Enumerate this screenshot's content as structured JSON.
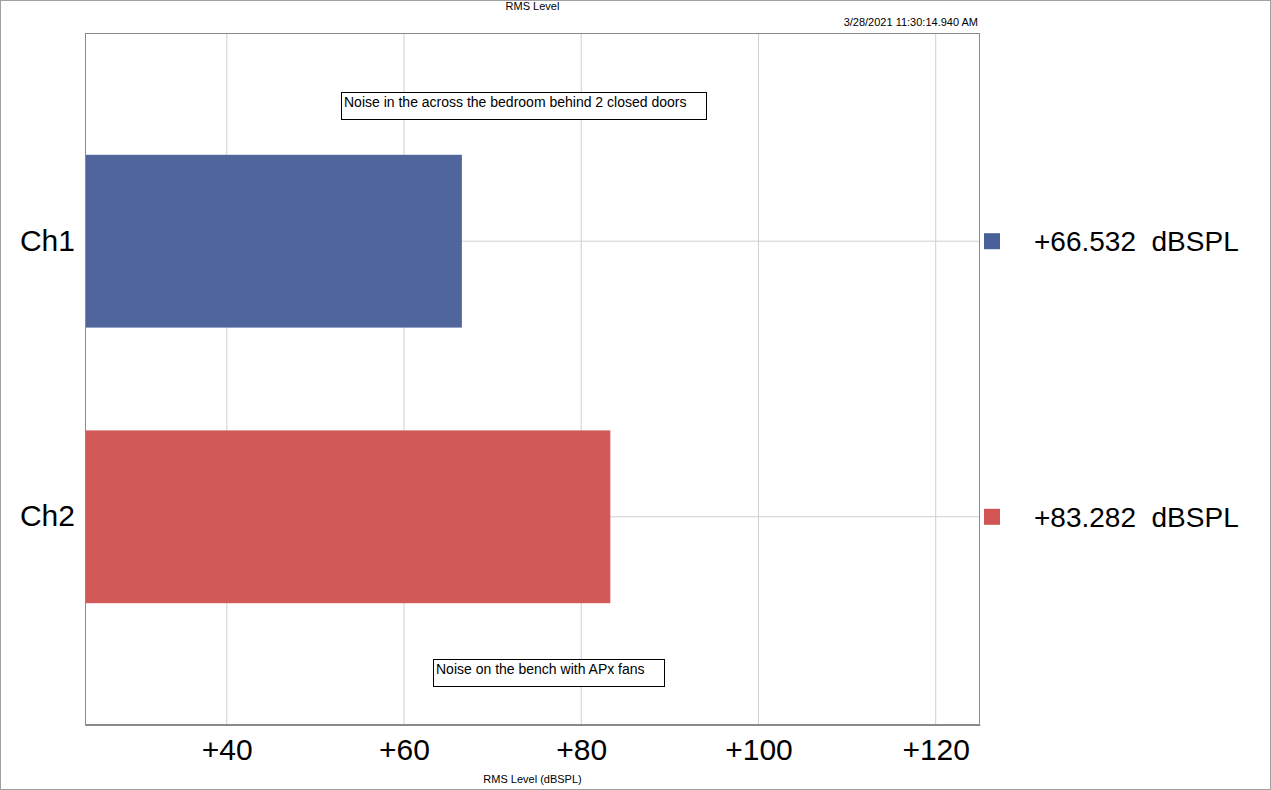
{
  "chart_data": {
    "type": "bar",
    "orientation": "horizontal",
    "title": "RMS Level",
    "subtitle": "3/28/2021 11:30:14.940 AM",
    "x_label": "RMS Level (dBSPL)",
    "categories": [
      "Ch1",
      "Ch2"
    ],
    "values": [
      66.532,
      83.282
    ],
    "value_labels": [
      "+66.532  dBSPL",
      "+83.282  dBSPL"
    ],
    "data_labels": true,
    "colors": [
      "#4a6099",
      "#d05553"
    ],
    "xlim": [
      24,
      125
    ],
    "xticks": [
      {
        "value": 40,
        "label": "+40"
      },
      {
        "value": 60,
        "label": "+60"
      },
      {
        "value": 80,
        "label": "+80"
      },
      {
        "value": 100,
        "label": "+100"
      },
      {
        "value": 120,
        "label": "+120"
      }
    ],
    "grid": true,
    "annotations": [
      "Noise in the across the bedroom behind 2 closed doors",
      "Noise on the bench with APx fans"
    ]
  }
}
